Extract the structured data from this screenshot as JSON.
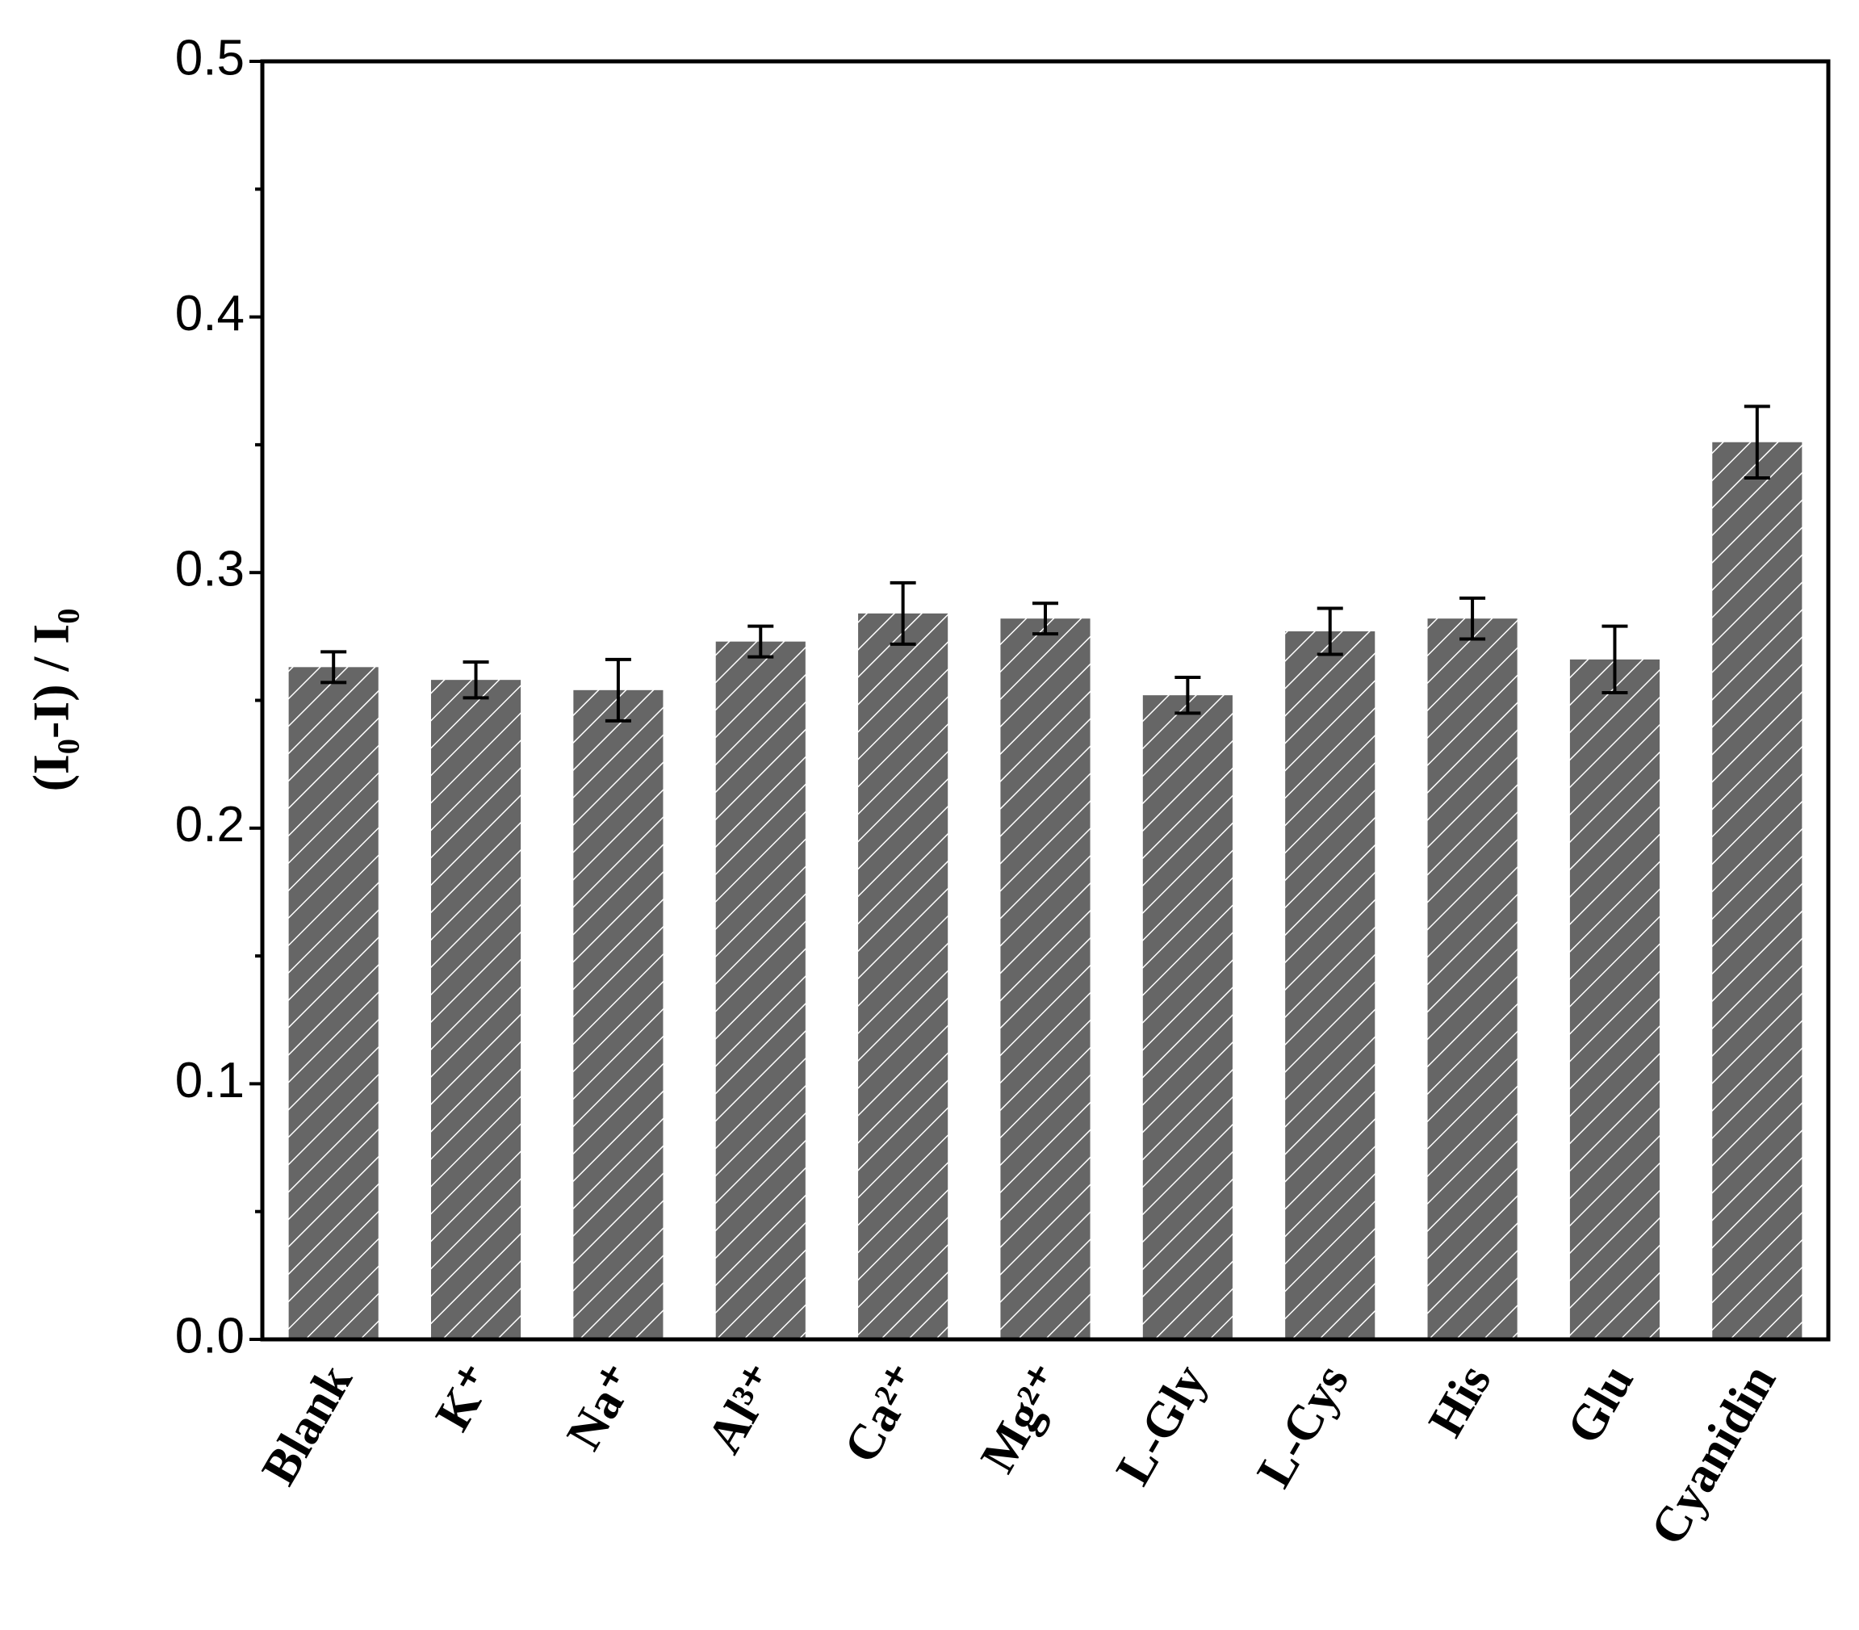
{
  "chart_data": {
    "type": "bar",
    "ylabel": "(I₀-I) / I₀",
    "categories": [
      "Blank",
      "K⁺",
      "Na⁺",
      "Al³⁺",
      "Ca²⁺",
      "Mg²⁺",
      "L-Gly",
      "L-Cys",
      "His",
      "Glu",
      "Cyanidin"
    ],
    "values": [
      0.263,
      0.258,
      0.254,
      0.273,
      0.284,
      0.282,
      0.252,
      0.277,
      0.282,
      0.266,
      0.351
    ],
    "errors": [
      0.006,
      0.007,
      0.012,
      0.006,
      0.012,
      0.006,
      0.007,
      0.009,
      0.008,
      0.013,
      0.014
    ],
    "color": "#666666",
    "ylim": [
      0,
      0.5
    ],
    "yticks": [
      {
        "value": 0,
        "label": "0.0"
      },
      0.1,
      0.2,
      0.3,
      0.4,
      0.5
    ],
    "minor_yticks": [
      0.05,
      0.15,
      0.25,
      0.35,
      0.45
    ]
  }
}
